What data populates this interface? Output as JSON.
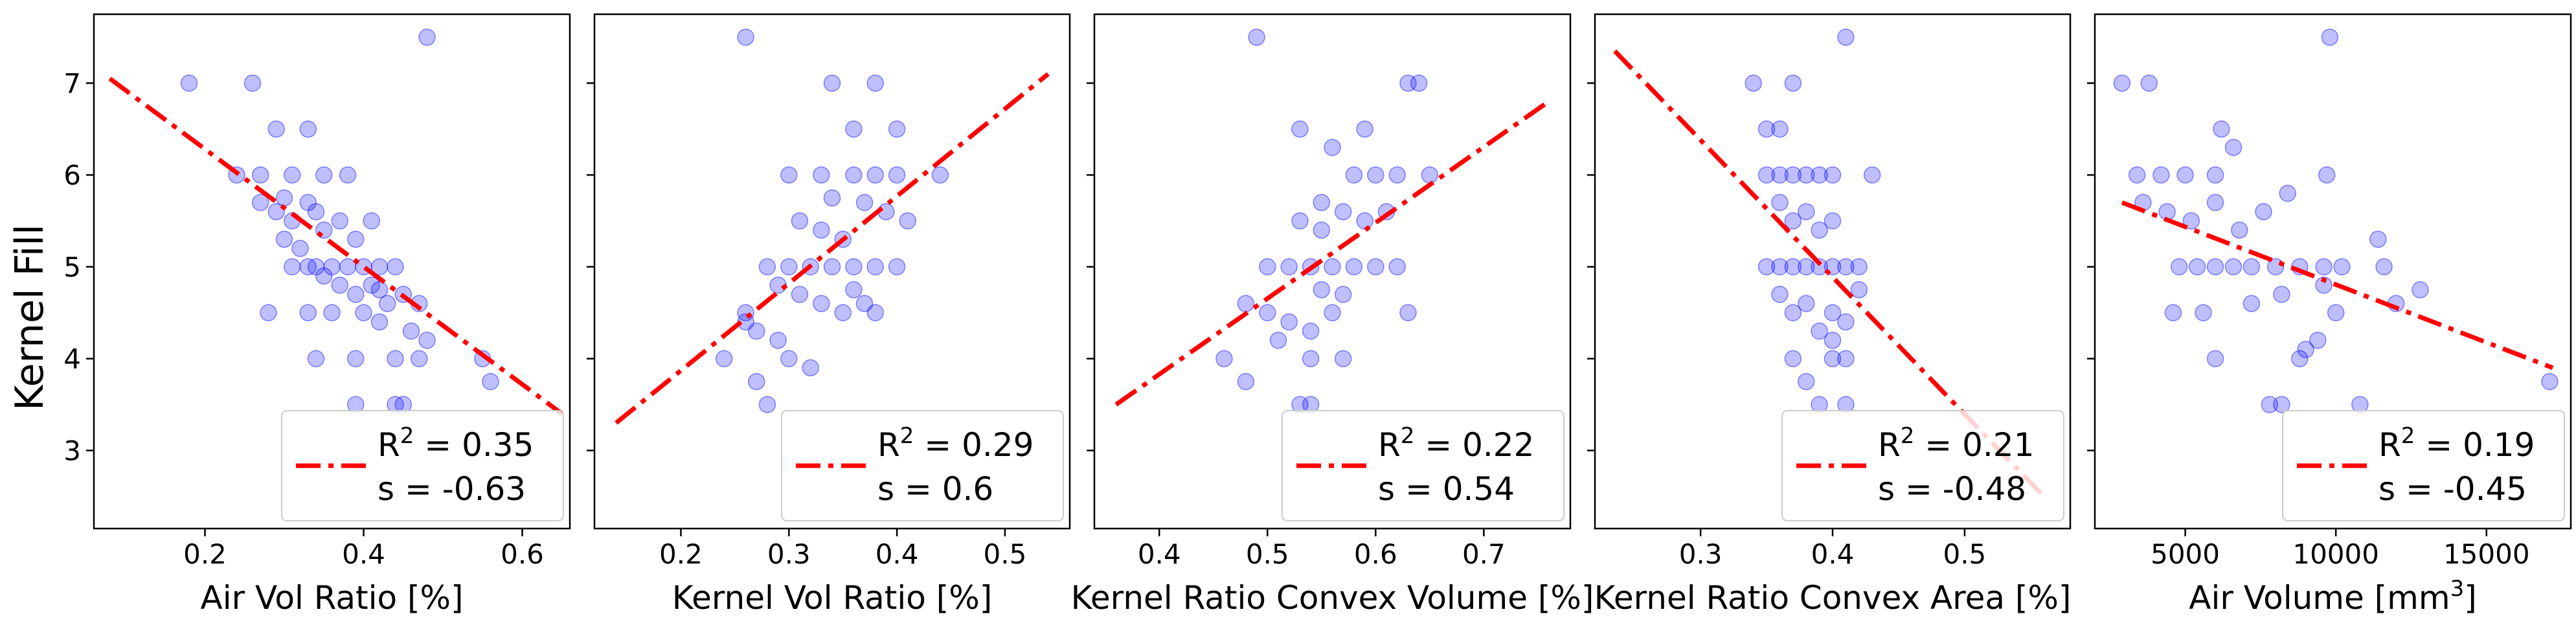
{
  "figure": {
    "shared_ylabel": "Kernel Fill"
  },
  "chart_data": [
    {
      "type": "scatter",
      "xlabel": "Air Vol Ratio [%]",
      "ylabel": "Kernel Fill",
      "xlim": [
        0.06,
        0.66
      ],
      "ylim": [
        2.15,
        7.75
      ],
      "xticks": [
        0.2,
        0.4,
        0.6
      ],
      "xtick_labels": [
        "0.2",
        "0.4",
        "0.6"
      ],
      "yticks": [
        3,
        4,
        5,
        6,
        7
      ],
      "ytick_labels": [
        "3",
        "4",
        "5",
        "6",
        "7"
      ],
      "fit": {
        "x": [
          0.08,
          0.65
        ],
        "y": [
          7.05,
          3.4
        ]
      },
      "legend": {
        "position": "lower-right",
        "r2_label": "R",
        "r2_sup": "2",
        "r2_value": "= 0.35",
        "s_label": "s",
        "s_value": "= -0.63"
      },
      "points": [
        [
          0.18,
          7.0
        ],
        [
          0.26,
          7.0
        ],
        [
          0.48,
          7.5
        ],
        [
          0.24,
          6.0
        ],
        [
          0.27,
          6.0
        ],
        [
          0.29,
          6.5
        ],
        [
          0.33,
          6.5
        ],
        [
          0.31,
          6.0
        ],
        [
          0.35,
          6.0
        ],
        [
          0.38,
          6.0
        ],
        [
          0.27,
          5.7
        ],
        [
          0.29,
          5.6
        ],
        [
          0.31,
          5.5
        ],
        [
          0.33,
          5.7
        ],
        [
          0.35,
          5.4
        ],
        [
          0.37,
          5.5
        ],
        [
          0.39,
          5.3
        ],
        [
          0.41,
          5.5
        ],
        [
          0.3,
          5.3
        ],
        [
          0.32,
          5.2
        ],
        [
          0.34,
          5.0
        ],
        [
          0.36,
          5.0
        ],
        [
          0.38,
          5.0
        ],
        [
          0.4,
          5.0
        ],
        [
          0.42,
          5.0
        ],
        [
          0.44,
          5.0
        ],
        [
          0.31,
          5.0
        ],
        [
          0.33,
          5.0
        ],
        [
          0.35,
          4.9
        ],
        [
          0.37,
          4.8
        ],
        [
          0.39,
          4.7
        ],
        [
          0.41,
          4.8
        ],
        [
          0.43,
          4.6
        ],
        [
          0.45,
          4.7
        ],
        [
          0.47,
          4.6
        ],
        [
          0.28,
          4.5
        ],
        [
          0.33,
          4.5
        ],
        [
          0.36,
          4.5
        ],
        [
          0.4,
          4.5
        ],
        [
          0.42,
          4.4
        ],
        [
          0.46,
          4.3
        ],
        [
          0.48,
          4.2
        ],
        [
          0.34,
          4.0
        ],
        [
          0.39,
          4.0
        ],
        [
          0.44,
          4.0
        ],
        [
          0.47,
          4.0
        ],
        [
          0.55,
          4.0
        ],
        [
          0.39,
          3.5
        ],
        [
          0.44,
          3.5
        ],
        [
          0.45,
          3.5
        ],
        [
          0.56,
          3.75
        ],
        [
          0.42,
          4.75
        ],
        [
          0.3,
          5.75
        ],
        [
          0.34,
          5.6
        ]
      ]
    },
    {
      "type": "scatter",
      "xlabel": "Kernel Vol Ratio [%]",
      "ylabel": "",
      "xlim": [
        0.12,
        0.56
      ],
      "ylim": [
        2.15,
        7.75
      ],
      "xticks": [
        0.2,
        0.3,
        0.4,
        0.5
      ],
      "xtick_labels": [
        "0.2",
        "0.3",
        "0.4",
        "0.5"
      ],
      "yticks": [
        3,
        4,
        5,
        6,
        7
      ],
      "ytick_labels": [
        "",
        "",
        "",
        "",
        ""
      ],
      "fit": {
        "x": [
          0.14,
          0.54
        ],
        "y": [
          3.3,
          7.1
        ]
      },
      "legend": {
        "position": "lower-right",
        "r2_label": "R",
        "r2_sup": "2",
        "r2_value": "= 0.29",
        "s_label": "s",
        "s_value": "= 0.6"
      },
      "points": [
        [
          0.26,
          7.5
        ],
        [
          0.34,
          7.0
        ],
        [
          0.38,
          7.0
        ],
        [
          0.36,
          6.5
        ],
        [
          0.4,
          6.5
        ],
        [
          0.3,
          6.0
        ],
        [
          0.33,
          6.0
        ],
        [
          0.36,
          6.0
        ],
        [
          0.38,
          6.0
        ],
        [
          0.4,
          6.0
        ],
        [
          0.44,
          6.0
        ],
        [
          0.34,
          5.75
        ],
        [
          0.37,
          5.7
        ],
        [
          0.39,
          5.6
        ],
        [
          0.41,
          5.5
        ],
        [
          0.31,
          5.5
        ],
        [
          0.33,
          5.4
        ],
        [
          0.35,
          5.3
        ],
        [
          0.28,
          5.0
        ],
        [
          0.3,
          5.0
        ],
        [
          0.32,
          5.0
        ],
        [
          0.34,
          5.0
        ],
        [
          0.36,
          5.0
        ],
        [
          0.38,
          5.0
        ],
        [
          0.4,
          5.0
        ],
        [
          0.29,
          4.8
        ],
        [
          0.31,
          4.7
        ],
        [
          0.33,
          4.6
        ],
        [
          0.35,
          4.5
        ],
        [
          0.26,
          4.5
        ],
        [
          0.27,
          4.3
        ],
        [
          0.29,
          4.2
        ],
        [
          0.26,
          4.4
        ],
        [
          0.24,
          4.0
        ],
        [
          0.3,
          4.0
        ],
        [
          0.38,
          4.5
        ],
        [
          0.27,
          3.75
        ],
        [
          0.28,
          3.5
        ],
        [
          0.32,
          3.9
        ],
        [
          0.36,
          4.75
        ],
        [
          0.37,
          4.6
        ]
      ]
    },
    {
      "type": "scatter",
      "xlabel": "Kernel Ratio Convex Volume [%]",
      "ylabel": "",
      "xlim": [
        0.34,
        0.78
      ],
      "ylim": [
        2.15,
        7.75
      ],
      "xticks": [
        0.4,
        0.5,
        0.6,
        0.7
      ],
      "xtick_labels": [
        "0.4",
        "0.5",
        "0.6",
        "0.7"
      ],
      "yticks": [
        3,
        4,
        5,
        6,
        7
      ],
      "ytick_labels": [
        "",
        "",
        "",
        "",
        ""
      ],
      "fit": {
        "x": [
          0.36,
          0.76
        ],
        "y": [
          3.5,
          6.8
        ]
      },
      "legend": {
        "position": "lower-right",
        "r2_label": "R",
        "r2_sup": "2",
        "r2_value": "= 0.22",
        "s_label": "s",
        "s_value": "= 0.54"
      },
      "points": [
        [
          0.49,
          7.5
        ],
        [
          0.63,
          7.0
        ],
        [
          0.64,
          7.0
        ],
        [
          0.53,
          6.5
        ],
        [
          0.59,
          6.5
        ],
        [
          0.56,
          6.3
        ],
        [
          0.58,
          6.0
        ],
        [
          0.6,
          6.0
        ],
        [
          0.62,
          6.0
        ],
        [
          0.65,
          6.0
        ],
        [
          0.55,
          5.7
        ],
        [
          0.57,
          5.6
        ],
        [
          0.59,
          5.5
        ],
        [
          0.61,
          5.6
        ],
        [
          0.53,
          5.5
        ],
        [
          0.55,
          5.4
        ],
        [
          0.5,
          5.0
        ],
        [
          0.52,
          5.0
        ],
        [
          0.54,
          5.0
        ],
        [
          0.56,
          5.0
        ],
        [
          0.58,
          5.0
        ],
        [
          0.6,
          5.0
        ],
        [
          0.62,
          5.0
        ],
        [
          0.48,
          4.6
        ],
        [
          0.5,
          4.5
        ],
        [
          0.52,
          4.4
        ],
        [
          0.54,
          4.3
        ],
        [
          0.56,
          4.5
        ],
        [
          0.51,
          4.2
        ],
        [
          0.46,
          4.0
        ],
        [
          0.54,
          4.0
        ],
        [
          0.57,
          4.0
        ],
        [
          0.48,
          3.75
        ],
        [
          0.53,
          3.5
        ],
        [
          0.54,
          3.5
        ],
        [
          0.63,
          4.5
        ],
        [
          0.55,
          4.75
        ],
        [
          0.57,
          4.7
        ]
      ]
    },
    {
      "type": "scatter",
      "xlabel": "Kernel Ratio Convex Area [%]",
      "ylabel": "",
      "xlim": [
        0.22,
        0.58
      ],
      "ylim": [
        2.15,
        7.75
      ],
      "xticks": [
        0.3,
        0.4,
        0.5
      ],
      "xtick_labels": [
        "0.3",
        "0.4",
        "0.5"
      ],
      "yticks": [
        3,
        4,
        5,
        6,
        7
      ],
      "ytick_labels": [
        "",
        "",
        "",
        "",
        ""
      ],
      "fit": {
        "x": [
          0.235,
          0.56
        ],
        "y": [
          7.35,
          2.5
        ]
      },
      "legend": {
        "position": "lower-right",
        "r2_label": "R",
        "r2_sup": "2",
        "r2_value": "= 0.21",
        "s_label": "s",
        "s_value": "= -0.48"
      },
      "points": [
        [
          0.41,
          7.5
        ],
        [
          0.34,
          7.0
        ],
        [
          0.37,
          7.0
        ],
        [
          0.35,
          6.5
        ],
        [
          0.36,
          6.5
        ],
        [
          0.35,
          6.0
        ],
        [
          0.36,
          6.0
        ],
        [
          0.37,
          6.0
        ],
        [
          0.38,
          6.0
        ],
        [
          0.39,
          6.0
        ],
        [
          0.4,
          6.0
        ],
        [
          0.43,
          6.0
        ],
        [
          0.36,
          5.7
        ],
        [
          0.38,
          5.6
        ],
        [
          0.4,
          5.5
        ],
        [
          0.37,
          5.5
        ],
        [
          0.39,
          5.4
        ],
        [
          0.35,
          5.0
        ],
        [
          0.36,
          5.0
        ],
        [
          0.37,
          5.0
        ],
        [
          0.38,
          5.0
        ],
        [
          0.39,
          5.0
        ],
        [
          0.4,
          5.0
        ],
        [
          0.41,
          5.0
        ],
        [
          0.42,
          5.0
        ],
        [
          0.36,
          4.7
        ],
        [
          0.38,
          4.6
        ],
        [
          0.4,
          4.5
        ],
        [
          0.41,
          4.4
        ],
        [
          0.39,
          4.3
        ],
        [
          0.4,
          4.2
        ],
        [
          0.37,
          4.0
        ],
        [
          0.4,
          4.0
        ],
        [
          0.41,
          4.0
        ],
        [
          0.38,
          3.75
        ],
        [
          0.39,
          3.5
        ],
        [
          0.41,
          3.5
        ],
        [
          0.37,
          4.5
        ],
        [
          0.42,
          4.75
        ]
      ]
    },
    {
      "type": "scatter",
      "xlabel": "Air Volume [mm",
      "xlabel_sup": "3",
      "xlabel_end": "]",
      "ylabel": "",
      "xlim": [
        2000,
        17800
      ],
      "ylim": [
        2.15,
        7.75
      ],
      "xticks": [
        5000,
        10000,
        15000
      ],
      "xtick_labels": [
        "5000",
        "10000",
        "15000"
      ],
      "yticks": [
        3,
        4,
        5,
        6,
        7
      ],
      "ytick_labels": [
        "",
        "",
        "",
        "",
        ""
      ],
      "fit": {
        "x": [
          2900,
          17200
        ],
        "y": [
          5.7,
          3.9
        ]
      },
      "legend": {
        "position": "lower-right",
        "r2_label": "R",
        "r2_sup": "2",
        "r2_value": "= 0.19",
        "s_label": "s",
        "s_value": "= -0.45"
      },
      "points": [
        [
          2900,
          7.0
        ],
        [
          3800,
          7.0
        ],
        [
          9800,
          7.5
        ],
        [
          3400,
          6.0
        ],
        [
          4200,
          6.0
        ],
        [
          5000,
          6.0
        ],
        [
          6000,
          6.0
        ],
        [
          9700,
          6.0
        ],
        [
          6200,
          6.5
        ],
        [
          6600,
          6.3
        ],
        [
          3600,
          5.7
        ],
        [
          4400,
          5.6
        ],
        [
          5200,
          5.5
        ],
        [
          6000,
          5.7
        ],
        [
          6800,
          5.4
        ],
        [
          7600,
          5.6
        ],
        [
          8400,
          5.8
        ],
        [
          4800,
          5.0
        ],
        [
          5400,
          5.0
        ],
        [
          6000,
          5.0
        ],
        [
          6600,
          5.0
        ],
        [
          7200,
          5.0
        ],
        [
          8000,
          5.0
        ],
        [
          8800,
          5.0
        ],
        [
          9600,
          5.0
        ],
        [
          10200,
          5.0
        ],
        [
          11600,
          5.0
        ],
        [
          4600,
          4.5
        ],
        [
          5600,
          4.5
        ],
        [
          7200,
          4.6
        ],
        [
          8200,
          4.7
        ],
        [
          10000,
          4.5
        ],
        [
          12000,
          4.6
        ],
        [
          12800,
          4.75
        ],
        [
          6000,
          4.0
        ],
        [
          8800,
          4.0
        ],
        [
          9000,
          4.1
        ],
        [
          9400,
          4.2
        ],
        [
          7800,
          3.5
        ],
        [
          8200,
          3.5
        ],
        [
          10800,
          3.5
        ],
        [
          17100,
          3.75
        ],
        [
          9600,
          4.8
        ],
        [
          11400,
          5.3
        ]
      ]
    }
  ]
}
